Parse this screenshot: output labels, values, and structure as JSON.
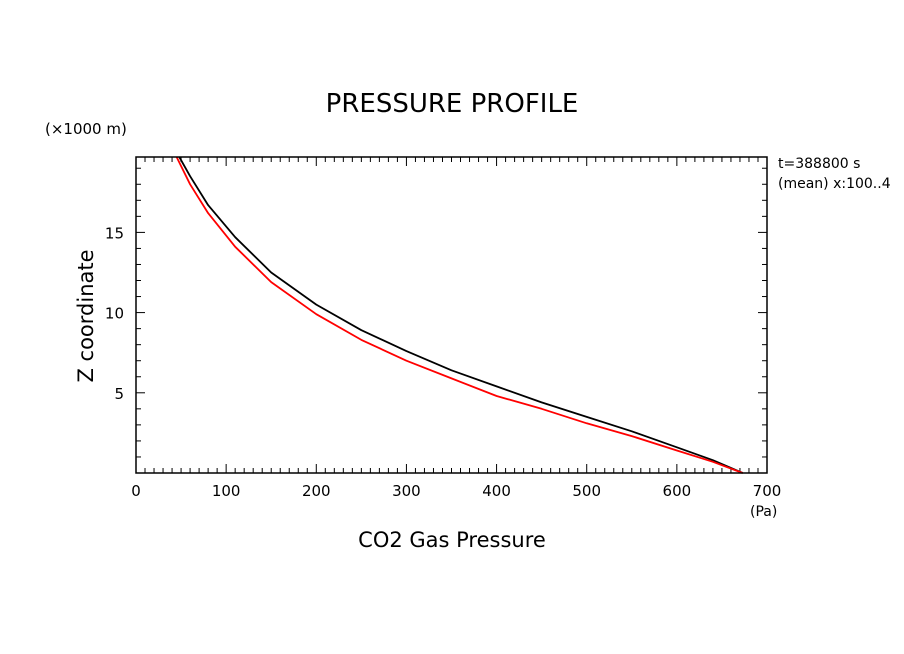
{
  "chart_data": {
    "type": "line",
    "title": "PRESSURE PROFILE",
    "xlabel": "CO2 Gas Pressure",
    "x_unit": "(Pa)",
    "ylabel": "Z coordinate",
    "y_unit": "(×1000 m)",
    "annotation_lines": [
      "t=388800 s",
      "(mean) x:100..4"
    ],
    "xlim": [
      0,
      700
    ],
    "ylim": [
      0,
      19.7
    ],
    "x_ticks": [
      0,
      100,
      200,
      300,
      400,
      500,
      600,
      700
    ],
    "y_ticks": [
      5,
      10,
      15
    ],
    "grid": false,
    "series": [
      {
        "color": "#000000",
        "x": [
          673,
          640,
          600,
          550,
          500,
          450,
          400,
          350,
          300,
          250,
          200,
          150,
          110,
          80,
          60,
          48
        ],
        "y": [
          0,
          0.8,
          1.6,
          2.6,
          3.5,
          4.4,
          5.4,
          6.4,
          7.6,
          8.9,
          10.5,
          12.5,
          14.7,
          16.7,
          18.5,
          19.7
        ]
      },
      {
        "color": "#ff0000",
        "x": [
          673,
          640,
          600,
          550,
          500,
          450,
          400,
          350,
          300,
          250,
          200,
          150,
          110,
          80,
          60,
          45
        ],
        "y": [
          0,
          0.7,
          1.4,
          2.3,
          3.1,
          4.0,
          4.8,
          5.9,
          7.0,
          8.3,
          9.9,
          11.9,
          14.1,
          16.2,
          18.0,
          19.7
        ]
      }
    ]
  }
}
